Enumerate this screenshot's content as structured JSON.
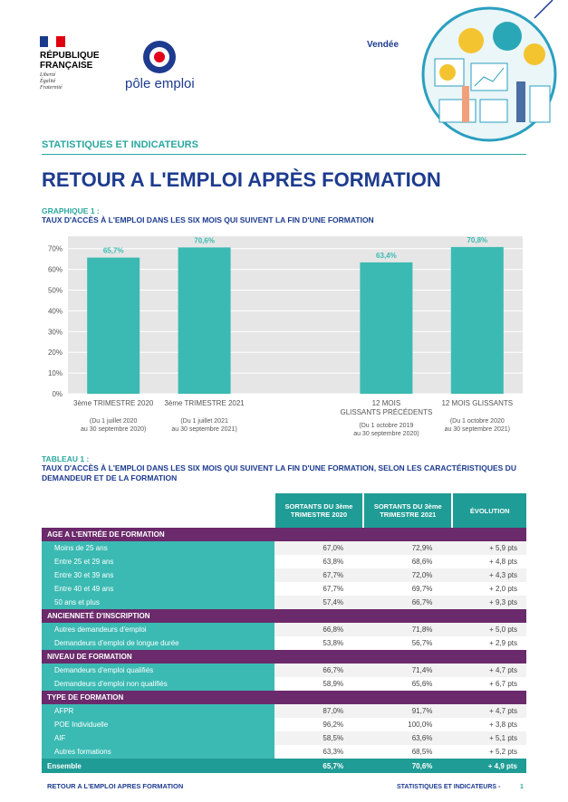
{
  "header": {
    "republic": [
      "RÉPUBLIQUE",
      "FRANÇAISE"
    ],
    "motto": [
      "Liberté",
      "Égalité",
      "Fraternité"
    ],
    "brand": "pôle emploi",
    "region": "Vendée",
    "section": "STATISTIQUES ET INDICATEURS",
    "title": "RETOUR A L'EMPLOI APRÈS FORMATION"
  },
  "graph": {
    "label": "GRAPHIQUE 1 :",
    "category_notes": [
      "(Du 1 juillet 2020 au 30 septembre 2020)",
      "(Du 1 juillet 2021 au 30 septembre 2021)",
      null,
      "(Du 1 octobre 2019 au 30 septembre 2020)",
      "(Du 1 octobre 2020 au 30 septembre 2021)"
    ]
  },
  "chart_data": {
    "type": "bar",
    "title": "TAUX D'ACCÈS À L'EMPLOI DANS LES SIX MOIS QUI SUIVENT LA FIN D'UNE FORMATION",
    "categories": [
      "3ème TRIMESTRE 2020",
      "3ème TRIMESTRE 2021",
      null,
      "12 MOIS GLISSANTS PRÉCÉDENTS",
      "12 MOIS GLISSANTS"
    ],
    "values": [
      65.7,
      70.6,
      null,
      63.4,
      70.8
    ],
    "value_labels": [
      "65,7%",
      "70,6%",
      null,
      "63,4%",
      "70,8%"
    ],
    "color": "#3bbab3",
    "ylim": [
      0,
      76
    ],
    "yticks": [
      {
        "value": 0,
        "label": "0%"
      },
      {
        "value": 10,
        "label": "10%"
      },
      {
        "value": 20,
        "label": "20%"
      },
      {
        "value": 30,
        "label": "30%"
      },
      {
        "value": 40,
        "label": "40%"
      },
      {
        "value": 50,
        "label": "50%"
      },
      {
        "value": 60,
        "label": "60%"
      },
      {
        "value": 70,
        "label": "70%"
      }
    ],
    "grid": true
  },
  "table": {
    "label": "TABLEAU 1 :",
    "title": "TAUX D'ACCÈS À L'EMPLOI DANS LES SIX MOIS QUI SUIVENT LA FIN D'UNE FORMATION, SELON LES CARACTÉRISTIQUES DU DEMANDEUR ET DE LA FORMATION",
    "columns": [
      "SORTANTS DU 3ème TRIMESTRE 2020",
      "SORTANTS DU 3ème TRIMESTRE 2021",
      "ÉVOLUTION"
    ],
    "sections": [
      {
        "title": "AGE A L'ENTRÉE DE FORMATION",
        "rows": [
          [
            "Moins de 25 ans",
            "67,0%",
            "72,9%",
            "+ 5,9 pts"
          ],
          [
            "Entre 25 et 29 ans",
            "63,8%",
            "68,6%",
            "+ 4,8 pts"
          ],
          [
            "Entre 30 et 39 ans",
            "67,7%",
            "72,0%",
            "+ 4,3 pts"
          ],
          [
            "Entre 40 et 49 ans",
            "67,7%",
            "69,7%",
            "+ 2,0 pts"
          ],
          [
            "50 ans et plus",
            "57,4%",
            "66,7%",
            "+ 9,3 pts"
          ]
        ]
      },
      {
        "title": "ANCIENNETÉ D'INSCRIPTION",
        "rows": [
          [
            "Autres demandeurs d'emploi",
            "66,8%",
            "71,8%",
            "+ 5,0 pts"
          ],
          [
            "Demandeurs d'emploi de longue durée",
            "53,8%",
            "56,7%",
            "+ 2,9 pts"
          ]
        ]
      },
      {
        "title": "NIVEAU DE FORMATION",
        "rows": [
          [
            "Demandeurs d'emploi qualifiés",
            "66,7%",
            "71,4%",
            "+ 4,7 pts"
          ],
          [
            "Demandeurs d'emploi non qualifiés",
            "58,9%",
            "65,6%",
            "+ 6,7 pts"
          ]
        ]
      },
      {
        "title": "TYPE DE FORMATION",
        "rows": [
          [
            "AFPR",
            "87,0%",
            "91,7%",
            "+ 4,7 pts"
          ],
          [
            "POE Individuelle",
            "96,2%",
            "100,0%",
            "+ 3,8 pts"
          ],
          [
            "AIF",
            "58,5%",
            "63,6%",
            "+ 5,1 pts"
          ],
          [
            "Autres formations",
            "63,3%",
            "68,5%",
            "+ 5,2 pts"
          ]
        ]
      }
    ],
    "total": [
      "Ensemble",
      "65,7%",
      "70,6%",
      "+ 4,9 pts"
    ]
  },
  "footer": {
    "left": "RETOUR A L'EMPLOI APRES FORMATION",
    "right": "STATISTIQUES ET INDICATEURS -",
    "page": "1"
  }
}
